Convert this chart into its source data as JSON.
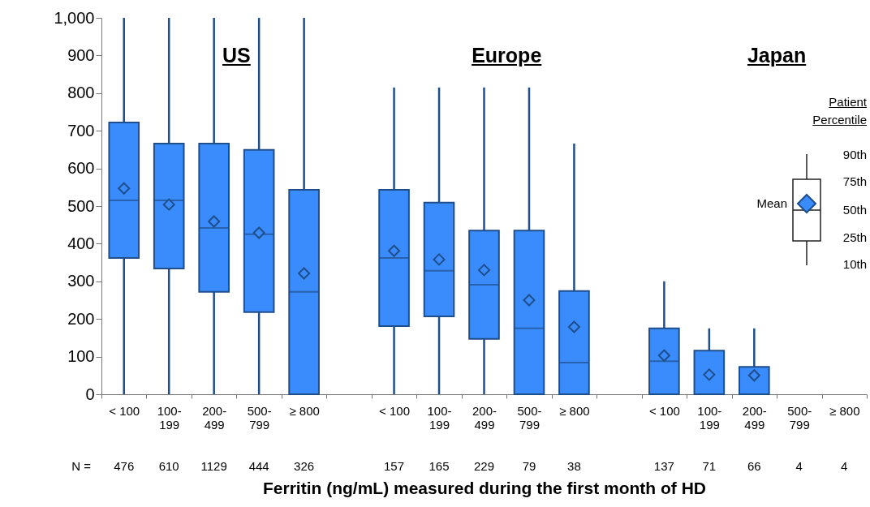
{
  "chart_data": {
    "type": "box",
    "xlabel": "Ferritin (ng/mL) measured during the first month of HD",
    "legend_title": "Patient Percentile",
    "marker": "diamond",
    "grid": false,
    "categories": [
      "< 100",
      "100-199",
      "200-499",
      "500-799",
      "≥ 800",
      null,
      "< 100",
      "100-199",
      "200-499",
      "500-799",
      "≥ 800",
      null,
      "< 100",
      "100-199",
      "200-499",
      "500-799",
      "≥ 800"
    ],
    "ylim": [
      0,
      1000
    ],
    "yticks": [
      0,
      100,
      200,
      300,
      400,
      500,
      600,
      700,
      800,
      900,
      {
        "value": 1000,
        "label": "1,000"
      }
    ],
    "series": [
      {
        "color": "#3a8cfc",
        "boxes": [
          {
            "low": 0,
            "q1": 362,
            "median": 515,
            "q3": 722,
            "high": 1000,
            "mean": 547
          },
          {
            "low": 0,
            "q1": 334,
            "median": 515,
            "q3": 666,
            "high": 1000,
            "mean": 504
          },
          {
            "low": 0,
            "q1": 272,
            "median": 442,
            "q3": 666,
            "high": 1000,
            "mean": 459
          },
          {
            "low": 0,
            "q1": 218,
            "median": 425,
            "q3": 649,
            "high": 1000,
            "mean": 429
          },
          {
            "low": 0,
            "q1": 0,
            "median": 272,
            "q3": 543,
            "high": 1000,
            "mean": 321
          },
          null,
          {
            "low": 0,
            "q1": 181,
            "median": 362,
            "q3": 543,
            "high": 815,
            "mean": 381
          },
          {
            "low": 0,
            "q1": 207,
            "median": 328,
            "q3": 509,
            "high": 815,
            "mean": 358
          },
          {
            "low": 0,
            "q1": 147,
            "median": 291,
            "q3": 435,
            "high": 815,
            "mean": 330
          },
          {
            "low": 0,
            "q1": 0,
            "median": 175,
            "q3": 435,
            "high": 815,
            "mean": 250
          },
          {
            "low": 0,
            "q1": 0,
            "median": 84,
            "q3": 274,
            "high": 666,
            "mean": 179
          },
          null,
          {
            "low": 0,
            "q1": 0,
            "median": 88,
            "q3": 175,
            "high": 300,
            "mean": 103
          },
          {
            "low": 0,
            "q1": 0,
            "median": 0,
            "q3": 116,
            "high": 175,
            "mean": 52
          },
          {
            "low": 0,
            "q1": 0,
            "median": 0,
            "q3": 73,
            "high": 175,
            "mean": 50
          },
          null,
          null
        ]
      }
    ],
    "annotations": [
      "US",
      "Europe",
      "Japan",
      "N =",
      "476",
      "610",
      "1129",
      "444",
      "326",
      "157",
      "165",
      "229",
      "79",
      "38",
      "137",
      "71",
      "66",
      "4",
      "4",
      "Mean",
      "90th",
      "75th",
      "50th",
      "25th",
      "10th"
    ]
  }
}
